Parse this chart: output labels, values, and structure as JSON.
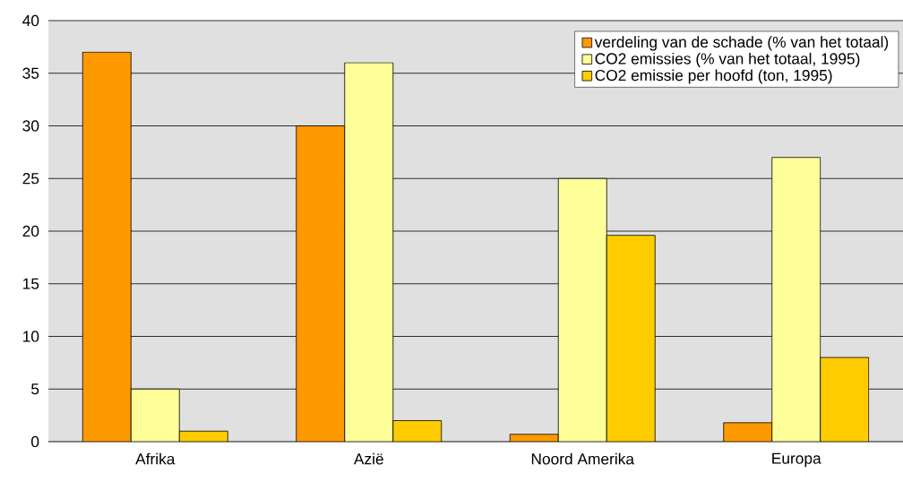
{
  "chart_data": {
    "type": "bar",
    "categories": [
      "Afrika",
      "Azië",
      "Noord Amerika",
      "Europa"
    ],
    "series": [
      {
        "name": "verdeling van de schade (% van het totaal)",
        "color": "#ff9900",
        "values": [
          37,
          30,
          0.7,
          1.8
        ]
      },
      {
        "name": "CO2 emissies (% van het totaal, 1995)",
        "color": "#ffff99",
        "values": [
          5,
          36,
          25,
          27
        ]
      },
      {
        "name": "CO2 emissie per hoofd (ton, 1995)",
        "color": "#ffcc00",
        "values": [
          1,
          2,
          19.6,
          8
        ]
      }
    ],
    "ylim": [
      0,
      40
    ],
    "yticks": [
      0,
      5,
      10,
      15,
      20,
      25,
      30,
      35,
      40
    ],
    "grid": "y",
    "legend": "top right"
  }
}
